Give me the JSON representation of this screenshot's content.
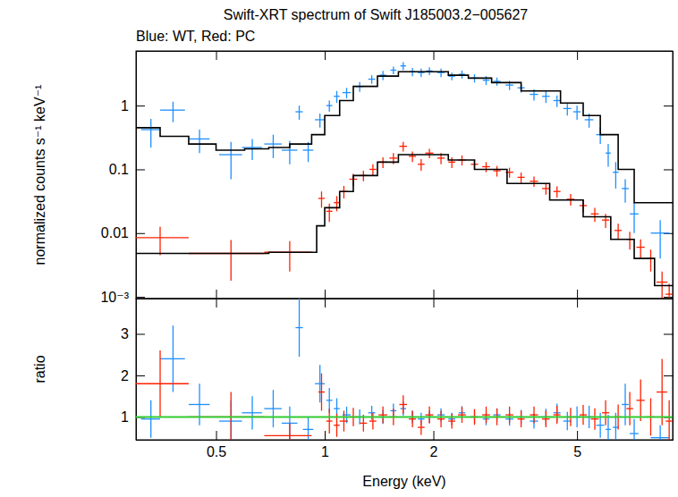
{
  "chart_data": [
    {
      "type": "scatter",
      "title": "Swift-XRT spectrum of Swift J185003.2−005627",
      "subtitle": "Blue: WT, Red: PC",
      "ylabel": "normalized counts s⁻¹ keV⁻¹",
      "log": true,
      "tick_labels": "y",
      "xlim": [
        0.3,
        9.2
      ],
      "xticks": [
        0.5,
        1,
        2,
        5
      ],
      "ylim": [
        0.00094,
        7.2
      ],
      "yticks": [
        {
          "value": 0.001,
          "label": "10⁻³"
        },
        0.01,
        0.1,
        1
      ],
      "series": [
        {
          "type": "scatter",
          "color": "#1e8fff",
          "marker": "cross",
          "x": [
            0.33,
            0.38,
            0.45,
            0.55,
            0.63,
            0.72,
            0.8,
            0.85,
            0.9,
            0.97,
            1.03,
            1.08,
            1.15,
            1.25,
            1.35,
            1.45,
            1.55,
            1.65,
            1.75,
            1.85,
            1.95,
            2.1,
            2.25,
            2.4,
            2.6,
            2.8,
            3.0,
            3.25,
            3.5,
            3.8,
            4.1,
            4.4,
            4.7,
            5.0,
            5.4,
            5.8,
            6.1,
            6.4,
            6.8,
            7.2,
            8.5
          ],
          "x_errors": [
            0.02,
            0.03,
            0.03,
            0.04,
            0.04,
            0.04,
            0.04,
            0.02,
            0.03,
            0.03,
            0.02,
            0.02,
            0.03,
            0.03,
            0.03,
            0.03,
            0.03,
            0.03,
            0.03,
            0.04,
            0.04,
            0.05,
            0.05,
            0.05,
            0.06,
            0.06,
            0.07,
            0.08,
            0.08,
            0.1,
            0.1,
            0.1,
            0.12,
            0.12,
            0.15,
            0.15,
            0.1,
            0.12,
            0.15,
            0.2,
            0.5
          ],
          "values": [
            0.42,
            0.85,
            0.3,
            0.17,
            0.22,
            0.25,
            0.2,
            0.8,
            0.2,
            0.6,
            1.0,
            1.4,
            1.6,
            2.0,
            2.6,
            3.0,
            3.6,
            4.2,
            3.4,
            3.3,
            3.5,
            3.3,
            2.9,
            3.1,
            2.7,
            2.5,
            2.4,
            2.1,
            1.9,
            1.5,
            1.4,
            1.2,
            0.9,
            0.8,
            0.6,
            0.35,
            0.18,
            0.09,
            0.05,
            0.02,
            0.01
          ],
          "errors": [
            0.2,
            0.3,
            0.12,
            0.1,
            0.08,
            0.1,
            0.08,
            0.2,
            0.07,
            0.15,
            0.2,
            0.3,
            0.3,
            0.35,
            0.4,
            0.5,
            0.5,
            0.6,
            0.5,
            0.5,
            0.5,
            0.5,
            0.4,
            0.45,
            0.4,
            0.4,
            0.35,
            0.35,
            0.3,
            0.3,
            0.3,
            0.25,
            0.2,
            0.2,
            0.15,
            0.1,
            0.07,
            0.04,
            0.02,
            0.01,
            0.006
          ]
        },
        {
          "type": "scatter",
          "color": "#ff2000",
          "marker": "cross",
          "x": [
            0.35,
            0.55,
            0.8,
            0.98,
            1.03,
            1.08,
            1.13,
            1.2,
            1.28,
            1.36,
            1.45,
            1.55,
            1.65,
            1.75,
            1.85,
            1.95,
            2.1,
            2.25,
            2.4,
            2.6,
            2.8,
            3.0,
            3.25,
            3.5,
            3.8,
            4.1,
            4.4,
            4.8,
            5.2,
            5.6,
            6.0,
            6.5,
            7.0,
            7.5,
            8.0,
            8.6,
            9.0
          ],
          "x_errors": [
            0.07,
            0.13,
            0.12,
            0.02,
            0.02,
            0.02,
            0.03,
            0.03,
            0.03,
            0.03,
            0.04,
            0.04,
            0.04,
            0.04,
            0.04,
            0.05,
            0.05,
            0.05,
            0.06,
            0.06,
            0.07,
            0.07,
            0.08,
            0.08,
            0.1,
            0.1,
            0.1,
            0.12,
            0.12,
            0.14,
            0.14,
            0.15,
            0.15,
            0.2,
            0.2,
            0.3,
            0.2
          ],
          "values": [
            0.0085,
            0.0048,
            0.005,
            0.035,
            0.022,
            0.03,
            0.045,
            0.07,
            0.08,
            0.1,
            0.13,
            0.15,
            0.23,
            0.16,
            0.12,
            0.18,
            0.15,
            0.13,
            0.14,
            0.12,
            0.11,
            0.095,
            0.09,
            0.075,
            0.065,
            0.05,
            0.045,
            0.034,
            0.027,
            0.02,
            0.016,
            0.011,
            0.008,
            0.006,
            0.004,
            0.0017,
            0.0011
          ],
          "errors": [
            0.004,
            0.003,
            0.0025,
            0.01,
            0.007,
            0.008,
            0.01,
            0.015,
            0.015,
            0.02,
            0.025,
            0.03,
            0.04,
            0.03,
            0.025,
            0.03,
            0.03,
            0.025,
            0.025,
            0.022,
            0.02,
            0.018,
            0.016,
            0.014,
            0.012,
            0.01,
            0.009,
            0.007,
            0.006,
            0.005,
            0.004,
            0.003,
            0.0025,
            0.002,
            0.0015,
            0.0008,
            0.0005
          ]
        },
        {
          "type": "line",
          "color": "#000000",
          "line_style": "step",
          "x": [
            0.3,
            0.35,
            0.42,
            0.5,
            0.6,
            0.7,
            0.8,
            0.92,
            1.0,
            1.1,
            1.2,
            1.4,
            1.6,
            1.8,
            2.2,
            2.5,
            2.9,
            3.5,
            4.5,
            5.2,
            5.8,
            6.5,
            7.2,
            8.0,
            9.2
          ],
          "values": [
            0.45,
            0.33,
            0.25,
            0.2,
            0.21,
            0.22,
            0.25,
            0.35,
            0.7,
            1.2,
            2.0,
            2.9,
            3.4,
            3.4,
            3.0,
            2.7,
            2.3,
            1.7,
            1.1,
            0.7,
            0.35,
            0.1,
            0.03,
            0.03,
            0.03
          ]
        },
        {
          "type": "line",
          "color": "#000000",
          "line_style": "step",
          "x": [
            0.3,
            0.45,
            0.7,
            0.95,
            1.0,
            1.1,
            1.2,
            1.4,
            1.6,
            1.8,
            2.2,
            2.6,
            3.2,
            4.2,
            5.2,
            6.2,
            7.2,
            8.2,
            9.2
          ],
          "values": [
            0.0048,
            0.0048,
            0.005,
            0.013,
            0.025,
            0.045,
            0.08,
            0.13,
            0.17,
            0.17,
            0.14,
            0.1,
            0.06,
            0.033,
            0.018,
            0.008,
            0.004,
            0.0015,
            0.0015
          ]
        }
      ]
    },
    {
      "type": "scatter",
      "xlabel": "Energy (keV)",
      "ylabel": "ratio",
      "log": "x",
      "xlim": [
        0.3,
        9.2
      ],
      "xticks": [
        0.5,
        1,
        2,
        5
      ],
      "ylim": [
        0.45,
        3.85
      ],
      "yticks": [
        1,
        2,
        3
      ],
      "series": [
        {
          "type": "scatter",
          "color": "#1e8fff",
          "marker": "cross",
          "x": [
            0.33,
            0.38,
            0.45,
            0.55,
            0.63,
            0.72,
            0.8,
            0.85,
            0.9,
            0.97,
            1.03,
            1.08,
            1.15,
            1.25,
            1.35,
            1.45,
            1.55,
            1.65,
            1.75,
            1.85,
            1.95,
            2.1,
            2.25,
            2.4,
            2.6,
            2.8,
            3.0,
            3.25,
            3.5,
            3.8,
            4.1,
            4.4,
            4.7,
            5.0,
            5.4,
            5.8,
            6.1,
            6.4,
            6.8,
            7.2,
            8.5
          ],
          "x_errors": [
            0.02,
            0.03,
            0.03,
            0.04,
            0.04,
            0.04,
            0.04,
            0.02,
            0.03,
            0.03,
            0.02,
            0.02,
            0.03,
            0.03,
            0.03,
            0.03,
            0.03,
            0.03,
            0.03,
            0.04,
            0.04,
            0.05,
            0.05,
            0.05,
            0.06,
            0.06,
            0.07,
            0.08,
            0.08,
            0.1,
            0.1,
            0.1,
            0.12,
            0.12,
            0.15,
            0.15,
            0.1,
            0.12,
            0.15,
            0.2,
            0.5
          ],
          "values": [
            0.95,
            2.4,
            1.3,
            0.9,
            1.1,
            1.2,
            0.85,
            3.15,
            0.7,
            1.8,
            1.4,
            1.2,
            1.05,
            1.0,
            1.1,
            1.0,
            1.15,
            1.2,
            1.0,
            0.95,
            1.0,
            1.05,
            0.95,
            1.1,
            1.0,
            0.95,
            1.05,
            0.95,
            1.0,
            0.9,
            1.0,
            1.1,
            0.9,
            1.0,
            1.0,
            0.8,
            0.7,
            0.75,
            1.3,
            0.6,
            0.5
          ],
          "errors": [
            0.45,
            0.8,
            0.5,
            0.5,
            0.4,
            0.45,
            0.4,
            0.7,
            0.3,
            0.45,
            0.3,
            0.25,
            0.2,
            0.18,
            0.17,
            0.17,
            0.17,
            0.17,
            0.15,
            0.15,
            0.15,
            0.16,
            0.15,
            0.16,
            0.15,
            0.15,
            0.16,
            0.16,
            0.17,
            0.18,
            0.2,
            0.22,
            0.22,
            0.25,
            0.27,
            0.3,
            0.35,
            0.35,
            0.5,
            0.35,
            0.3
          ]
        },
        {
          "type": "scatter",
          "color": "#ff2000",
          "marker": "cross",
          "x": [
            0.35,
            0.55,
            0.8,
            0.98,
            1.03,
            1.08,
            1.13,
            1.2,
            1.28,
            1.36,
            1.45,
            1.55,
            1.65,
            1.75,
            1.85,
            1.95,
            2.1,
            2.25,
            2.4,
            2.6,
            2.8,
            3.0,
            3.25,
            3.5,
            3.8,
            4.1,
            4.4,
            4.8,
            5.2,
            5.6,
            6.0,
            6.5,
            7.0,
            7.5,
            8.0,
            8.6,
            9.0
          ],
          "x_errors": [
            0.07,
            0.13,
            0.12,
            0.02,
            0.02,
            0.02,
            0.03,
            0.03,
            0.03,
            0.03,
            0.04,
            0.04,
            0.04,
            0.04,
            0.04,
            0.05,
            0.05,
            0.05,
            0.06,
            0.06,
            0.07,
            0.07,
            0.08,
            0.08,
            0.1,
            0.1,
            0.1,
            0.12,
            0.12,
            0.14,
            0.14,
            0.15,
            0.15,
            0.2,
            0.2,
            0.3,
            0.2
          ],
          "values": [
            1.8,
            1.0,
            0.55,
            1.6,
            0.9,
            0.8,
            0.9,
            1.0,
            0.85,
            0.9,
            1.05,
            1.0,
            1.3,
            0.95,
            0.75,
            1.05,
            0.95,
            0.9,
            1.05,
            1.0,
            1.05,
            1.0,
            1.05,
            0.95,
            1.05,
            0.95,
            1.05,
            1.0,
            1.05,
            0.95,
            1.1,
            1.0,
            1.2,
            1.4,
            1.0,
            1.6,
            0.9
          ],
          "errors": [
            0.8,
            0.6,
            0.3,
            0.45,
            0.3,
            0.28,
            0.25,
            0.22,
            0.2,
            0.2,
            0.2,
            0.2,
            0.22,
            0.2,
            0.18,
            0.2,
            0.2,
            0.18,
            0.19,
            0.19,
            0.2,
            0.2,
            0.2,
            0.2,
            0.2,
            0.2,
            0.22,
            0.22,
            0.24,
            0.26,
            0.3,
            0.3,
            0.4,
            0.5,
            0.45,
            0.8,
            0.5
          ]
        },
        {
          "type": "line",
          "color": "#33cc33",
          "line_style": "solid",
          "x": [
            0.3,
            9.2
          ],
          "values": [
            1,
            1
          ]
        }
      ]
    }
  ]
}
